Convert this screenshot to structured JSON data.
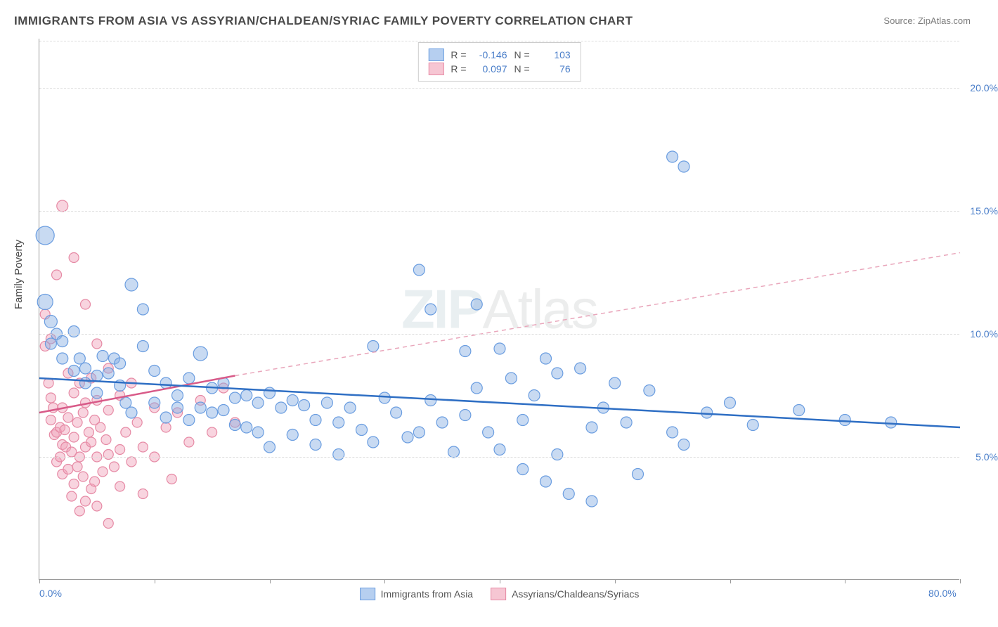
{
  "title": "IMMIGRANTS FROM ASIA VS ASSYRIAN/CHALDEAN/SYRIAC FAMILY POVERTY CORRELATION CHART",
  "source_label": "Source:",
  "source_value": "ZipAtlas.com",
  "y_axis_title": "Family Poverty",
  "type": "scatter",
  "background_color": "#ffffff",
  "grid_color": "#dddddd",
  "axis_color": "#999999",
  "tick_label_color": "#4a7ec9",
  "text_color": "#4a4a4a",
  "title_fontsize": 17,
  "label_fontsize": 14,
  "xlim": [
    0,
    80
  ],
  "ylim": [
    0,
    22
  ],
  "y_ticks": [
    5,
    10,
    15,
    20
  ],
  "y_tick_labels": [
    "5.0%",
    "10.0%",
    "15.0%",
    "20.0%"
  ],
  "x_tick_positions": [
    0,
    10,
    20,
    30,
    40,
    50,
    60,
    70,
    80
  ],
  "x_tick_labels_shown": {
    "0": "0.0%",
    "80": "80.0%"
  },
  "watermark": {
    "text_a": "ZIP",
    "text_b": "Atlas",
    "color_a": "#8aa8b8",
    "color_b": "#9aa0a0",
    "fontsize": 78,
    "opacity": 0.18
  },
  "legend_top": {
    "rows": [
      {
        "swatch_fill": "#b6cff0",
        "swatch_border": "#6a9de0",
        "r_label": "R =",
        "r_value": "-0.146",
        "n_label": "N =",
        "n_value": "103"
      },
      {
        "swatch_fill": "#f6c6d3",
        "swatch_border": "#e68aa5",
        "r_label": "R =",
        "r_value": "0.097",
        "n_label": "N =",
        "n_value": "76"
      }
    ]
  },
  "legend_bottom": [
    {
      "swatch_fill": "#b6cff0",
      "swatch_border": "#6a9de0",
      "label": "Immigrants from Asia"
    },
    {
      "swatch_fill": "#f6c6d3",
      "swatch_border": "#e68aa5",
      "label": "Assyrians/Chaldeans/Syriacs"
    }
  ],
  "series": {
    "blue": {
      "marker_fill": "rgba(132,174,226,0.45)",
      "marker_stroke": "#6a9de0",
      "marker_radius": 8,
      "trend": {
        "x1": 0,
        "y1": 8.2,
        "x2": 80,
        "y2": 6.2,
        "color": "#2f6fc4",
        "width": 2.5,
        "dash": "none"
      },
      "trend_extrapolate": null,
      "points": [
        [
          0.5,
          14.0,
          13
        ],
        [
          0.5,
          11.3,
          11
        ],
        [
          1,
          10.5,
          9
        ],
        [
          1,
          9.6,
          8
        ],
        [
          1.5,
          10,
          8
        ],
        [
          2,
          9.0,
          8
        ],
        [
          2,
          9.7,
          8
        ],
        [
          3,
          10.1,
          8
        ],
        [
          3,
          8.5,
          8
        ],
        [
          3.5,
          9.0,
          8
        ],
        [
          4,
          8.6,
          8
        ],
        [
          4,
          8.0,
          8
        ],
        [
          5,
          8.3,
          8
        ],
        [
          5,
          7.6,
          8
        ],
        [
          5.5,
          9.1,
          8
        ],
        [
          6,
          8.4,
          8
        ],
        [
          6.5,
          9.0,
          8
        ],
        [
          7,
          8.8,
          8
        ],
        [
          7,
          7.9,
          8
        ],
        [
          7.5,
          7.2,
          8
        ],
        [
          8,
          12.0,
          9
        ],
        [
          8,
          6.8,
          8
        ],
        [
          9,
          11.0,
          8
        ],
        [
          9,
          9.5,
          8
        ],
        [
          10,
          8.5,
          8
        ],
        [
          10,
          7.2,
          8
        ],
        [
          11,
          8.0,
          8
        ],
        [
          11,
          6.6,
          8
        ],
        [
          12,
          7.5,
          8
        ],
        [
          12,
          7.0,
          8
        ],
        [
          13,
          8.2,
          8
        ],
        [
          13,
          6.5,
          8
        ],
        [
          14,
          9.2,
          10
        ],
        [
          14,
          7.0,
          8
        ],
        [
          15,
          7.8,
          8
        ],
        [
          15,
          6.8,
          8
        ],
        [
          16,
          8.0,
          8
        ],
        [
          16,
          6.9,
          8
        ],
        [
          17,
          7.4,
          8
        ],
        [
          17,
          6.3,
          8
        ],
        [
          18,
          7.5,
          8
        ],
        [
          18,
          6.2,
          8
        ],
        [
          19,
          7.2,
          8
        ],
        [
          19,
          6.0,
          8
        ],
        [
          20,
          7.6,
          8
        ],
        [
          20,
          5.4,
          8
        ],
        [
          21,
          7.0,
          8
        ],
        [
          22,
          7.3,
          8
        ],
        [
          22,
          5.9,
          8
        ],
        [
          23,
          7.1,
          8
        ],
        [
          24,
          6.5,
          8
        ],
        [
          24,
          5.5,
          8
        ],
        [
          25,
          7.2,
          8
        ],
        [
          26,
          6.4,
          8
        ],
        [
          26,
          5.1,
          8
        ],
        [
          27,
          7.0,
          8
        ],
        [
          28,
          6.1,
          8
        ],
        [
          29,
          9.5,
          8
        ],
        [
          29,
          5.6,
          8
        ],
        [
          30,
          7.4,
          8
        ],
        [
          31,
          6.8,
          8
        ],
        [
          32,
          5.8,
          8
        ],
        [
          33,
          12.6,
          8
        ],
        [
          33,
          6.0,
          8
        ],
        [
          34,
          11.0,
          8
        ],
        [
          34,
          7.3,
          8
        ],
        [
          35,
          6.4,
          8
        ],
        [
          36,
          5.2,
          8
        ],
        [
          37,
          9.3,
          8
        ],
        [
          37,
          6.7,
          8
        ],
        [
          38,
          11.2,
          8
        ],
        [
          38,
          7.8,
          8
        ],
        [
          39,
          6.0,
          8
        ],
        [
          40,
          9.4,
          8
        ],
        [
          40,
          5.3,
          8
        ],
        [
          41,
          8.2,
          8
        ],
        [
          42,
          6.5,
          8
        ],
        [
          42,
          4.5,
          8
        ],
        [
          43,
          7.5,
          8
        ],
        [
          44,
          9.0,
          8
        ],
        [
          44,
          4.0,
          8
        ],
        [
          45,
          8.4,
          8
        ],
        [
          45,
          5.1,
          8
        ],
        [
          46,
          3.5,
          8
        ],
        [
          47,
          8.6,
          8
        ],
        [
          48,
          6.2,
          8
        ],
        [
          48,
          3.2,
          8
        ],
        [
          49,
          7.0,
          8
        ],
        [
          50,
          8.0,
          8
        ],
        [
          51,
          6.4,
          8
        ],
        [
          52,
          4.3,
          8
        ],
        [
          53,
          7.7,
          8
        ],
        [
          55,
          17.2,
          8
        ],
        [
          55,
          6.0,
          8
        ],
        [
          56,
          16.8,
          8
        ],
        [
          56,
          5.5,
          8
        ],
        [
          58,
          6.8,
          8
        ],
        [
          60,
          7.2,
          8
        ],
        [
          62,
          6.3,
          8
        ],
        [
          66,
          6.9,
          8
        ],
        [
          70,
          6.5,
          8
        ],
        [
          74,
          6.4,
          8
        ]
      ]
    },
    "pink": {
      "marker_fill": "rgba(240,160,185,0.45)",
      "marker_stroke": "#e68aa5",
      "marker_radius": 7,
      "trend": {
        "x1": 0,
        "y1": 6.8,
        "x2": 17,
        "y2": 8.3,
        "color": "#d85a88",
        "width": 2.5,
        "dash": "none"
      },
      "trend_extrapolate": {
        "x1": 17,
        "y1": 8.3,
        "x2": 80,
        "y2": 13.3,
        "color": "#e9a6bb",
        "width": 1.5,
        "dash": "6,5"
      },
      "points": [
        [
          0.5,
          10.8,
          7
        ],
        [
          0.5,
          9.5,
          7
        ],
        [
          0.8,
          8.0,
          7
        ],
        [
          1,
          9.8,
          7
        ],
        [
          1,
          7.4,
          7
        ],
        [
          1,
          6.5,
          7
        ],
        [
          1.2,
          7.0,
          7
        ],
        [
          1.3,
          5.9,
          7
        ],
        [
          1.5,
          12.4,
          7
        ],
        [
          1.5,
          6.0,
          7
        ],
        [
          1.5,
          4.8,
          7
        ],
        [
          1.8,
          6.2,
          7
        ],
        [
          1.8,
          5.0,
          7
        ],
        [
          2,
          15.2,
          8
        ],
        [
          2,
          7.0,
          7
        ],
        [
          2,
          5.5,
          7
        ],
        [
          2,
          4.3,
          7
        ],
        [
          2.2,
          6.1,
          7
        ],
        [
          2.3,
          5.4,
          7
        ],
        [
          2.5,
          8.4,
          7
        ],
        [
          2.5,
          6.6,
          7
        ],
        [
          2.5,
          4.5,
          7
        ],
        [
          2.8,
          5.2,
          7
        ],
        [
          2.8,
          3.4,
          7
        ],
        [
          3,
          13.1,
          7
        ],
        [
          3,
          7.6,
          7
        ],
        [
          3,
          5.8,
          7
        ],
        [
          3,
          3.9,
          7
        ],
        [
          3.3,
          6.4,
          7
        ],
        [
          3.3,
          4.6,
          7
        ],
        [
          3.5,
          8.0,
          7
        ],
        [
          3.5,
          5.0,
          7
        ],
        [
          3.5,
          2.8,
          7
        ],
        [
          3.8,
          6.8,
          7
        ],
        [
          3.8,
          4.2,
          7
        ],
        [
          4,
          11.2,
          7
        ],
        [
          4,
          7.2,
          7
        ],
        [
          4,
          5.4,
          7
        ],
        [
          4,
          3.2,
          7
        ],
        [
          4.3,
          6.0,
          7
        ],
        [
          4.5,
          8.2,
          7
        ],
        [
          4.5,
          5.6,
          7
        ],
        [
          4.5,
          3.7,
          7
        ],
        [
          4.8,
          6.5,
          7
        ],
        [
          4.8,
          4.0,
          7
        ],
        [
          5,
          9.6,
          7
        ],
        [
          5,
          7.3,
          7
        ],
        [
          5,
          5.0,
          7
        ],
        [
          5,
          3.0,
          7
        ],
        [
          5.3,
          6.2,
          7
        ],
        [
          5.5,
          4.4,
          7
        ],
        [
          5.8,
          5.7,
          7
        ],
        [
          6,
          8.6,
          7
        ],
        [
          6,
          6.9,
          7
        ],
        [
          6,
          5.1,
          7
        ],
        [
          6,
          2.3,
          7
        ],
        [
          6.5,
          4.6,
          7
        ],
        [
          7,
          7.5,
          7
        ],
        [
          7,
          5.3,
          7
        ],
        [
          7,
          3.8,
          7
        ],
        [
          7.5,
          6.0,
          7
        ],
        [
          8,
          8.0,
          7
        ],
        [
          8,
          4.8,
          7
        ],
        [
          8.5,
          6.4,
          7
        ],
        [
          9,
          5.4,
          7
        ],
        [
          9,
          3.5,
          7
        ],
        [
          10,
          7.0,
          7
        ],
        [
          10,
          5.0,
          7
        ],
        [
          11,
          6.2,
          7
        ],
        [
          11.5,
          4.1,
          7
        ],
        [
          12,
          6.8,
          7
        ],
        [
          13,
          5.6,
          7
        ],
        [
          14,
          7.3,
          7
        ],
        [
          15,
          6.0,
          7
        ],
        [
          16,
          7.8,
          7
        ],
        [
          17,
          6.4,
          7
        ]
      ]
    }
  }
}
